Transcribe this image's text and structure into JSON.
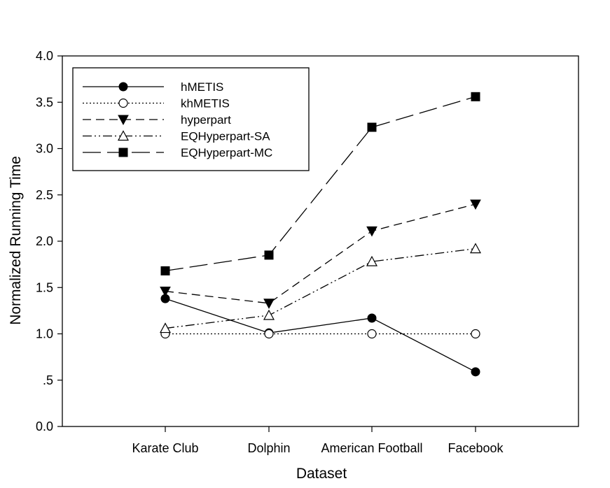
{
  "chart_data": {
    "type": "line",
    "xlabel": "Dataset",
    "ylabel": "Normalized Running Time",
    "categories": [
      "Karate Club",
      "Dolphin",
      "American Football",
      "Facebook"
    ],
    "ylim": [
      0,
      4.0
    ],
    "yticks": [
      0.0,
      0.5,
      1.0,
      1.5,
      2.0,
      2.5,
      3.0,
      3.5,
      4.0
    ],
    "ytick_labels": [
      "0.0",
      ".5",
      "1.0",
      "1.5",
      "2.0",
      "2.5",
      "3.0",
      "3.5",
      "4.0"
    ],
    "grid": false,
    "legend_position": "top-left",
    "series": [
      {
        "name": "hMETIS",
        "values": [
          1.38,
          1.01,
          1.17,
          0.59
        ],
        "marker": "circle-filled",
        "dash": "solid"
      },
      {
        "name": "khMETIS",
        "values": [
          1.0,
          1.0,
          1.0,
          1.0
        ],
        "marker": "circle-open",
        "dash": "dotted"
      },
      {
        "name": "hyperpart",
        "values": [
          1.46,
          1.33,
          2.11,
          2.4
        ],
        "marker": "triangle-down-filled",
        "dash": "dashed"
      },
      {
        "name": "EQHyperpart-SA",
        "values": [
          1.06,
          1.2,
          1.78,
          1.92
        ],
        "marker": "triangle-up-open",
        "dash": "dash-dot-dot"
      },
      {
        "name": "EQHyperpart-MC",
        "values": [
          1.68,
          1.85,
          3.23,
          3.56
        ],
        "marker": "square-filled",
        "dash": "long-dash"
      }
    ]
  }
}
